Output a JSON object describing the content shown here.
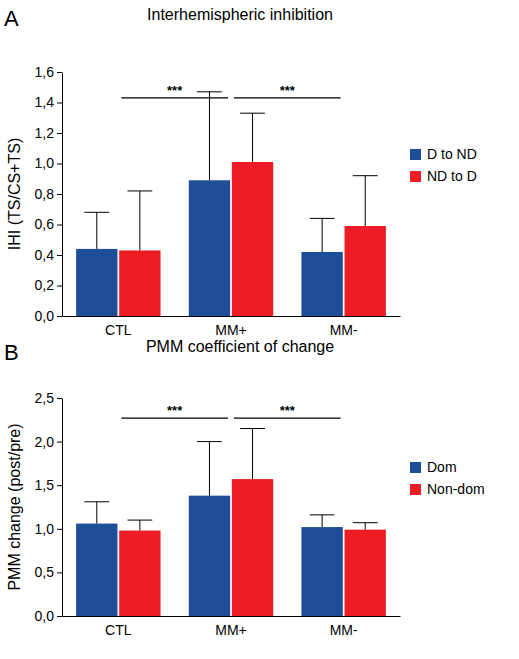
{
  "chart_data": [
    {
      "type": "bar",
      "panel_label": "A",
      "title": "Interhemispheric inhibition",
      "y_label": "IHI (TS/CS+TS)",
      "categories": [
        "CTL",
        "MM+",
        "MM-"
      ],
      "series": [
        {
          "name": "D to ND",
          "color": "#1f4e99",
          "values": [
            0.44,
            0.89,
            0.42
          ],
          "errors": [
            0.24,
            0.58,
            0.22
          ]
        },
        {
          "name": "ND to D",
          "color": "#ee1c25",
          "values": [
            0.43,
            1.01,
            0.59
          ],
          "errors": [
            0.39,
            0.32,
            0.33
          ]
        }
      ],
      "ylim": [
        0,
        1.6
      ],
      "yticks": [
        {
          "value": 0,
          "label": "0,0"
        },
        {
          "value": 0.2,
          "label": "0,2"
        },
        {
          "value": 0.4,
          "label": "0,4"
        },
        {
          "value": 0.6,
          "label": "0,6"
        },
        {
          "value": 0.8,
          "label": "0,8"
        },
        {
          "value": 1,
          "label": "1,0"
        },
        {
          "value": 1.2,
          "label": "1,2"
        },
        {
          "value": 1.4,
          "label": "1,4"
        },
        {
          "value": 1.6,
          "label": "1,6"
        }
      ],
      "significance": [
        {
          "from": "CTL",
          "to": "MM+",
          "label": "***",
          "y": 1.43
        },
        {
          "from": "MM+",
          "to": "MM-",
          "label": "***",
          "y": 1.43
        }
      ],
      "legend": "right",
      "grid": false
    },
    {
      "type": "bar",
      "panel_label": "B",
      "title": "PMM coefficient of change",
      "y_label": "PMM change (post/pre)",
      "categories": [
        "CTL",
        "MM+",
        "MM-"
      ],
      "series": [
        {
          "name": "Dom",
          "color": "#1f4e99",
          "values": [
            1.06,
            1.38,
            1.02
          ],
          "errors": [
            0.25,
            0.62,
            0.14
          ]
        },
        {
          "name": "Non-dom",
          "color": "#ee1c25",
          "values": [
            0.98,
            1.57,
            0.99
          ],
          "errors": [
            0.12,
            0.58,
            0.08
          ]
        }
      ],
      "ylim": [
        0,
        2.5
      ],
      "yticks": [
        {
          "value": 0,
          "label": "0,0"
        },
        {
          "value": 0.5,
          "label": "0,5"
        },
        {
          "value": 1,
          "label": "1,0"
        },
        {
          "value": 1.5,
          "label": "1,5"
        },
        {
          "value": 2,
          "label": "2,0"
        },
        {
          "value": 2.5,
          "label": "2,5"
        }
      ],
      "significance": [
        {
          "from": "CTL",
          "to": "MM+",
          "label": "***",
          "y": 2.27
        },
        {
          "from": "MM+",
          "to": "MM-",
          "label": "***",
          "y": 2.27
        }
      ],
      "legend": "right",
      "grid": false
    }
  ]
}
